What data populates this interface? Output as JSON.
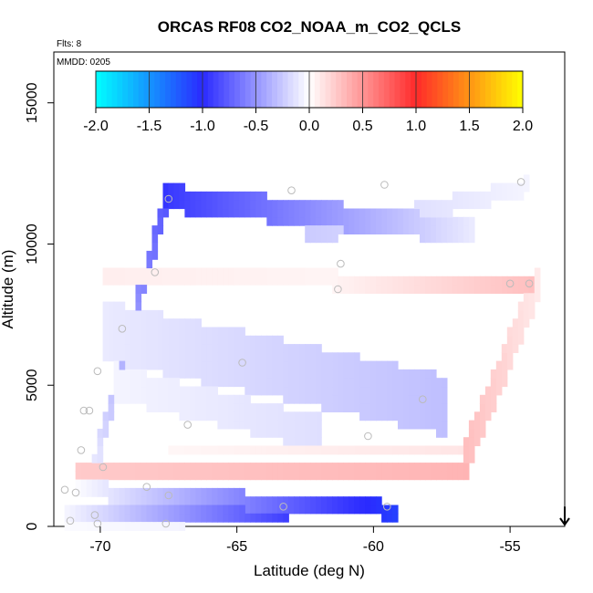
{
  "chart_data": {
    "type": "heatmap",
    "title": "ORCAS RF08 CO2_NOAA_m_CO2_QCLS",
    "annotations": {
      "flights": "Flts: 8",
      "date": "MMDD: 0205"
    },
    "xlabel": "Latitude (deg N)",
    "ylabel": "Altitude (m)",
    "xlim": [
      -71.7,
      -53.0
    ],
    "ylim": [
      0,
      16800
    ],
    "x_ticks": [
      -70,
      -65,
      -60,
      -55
    ],
    "x_tick_labels": [
      "-70",
      "-65",
      "-60",
      "-55"
    ],
    "y_ticks": [
      0,
      5000,
      10000,
      15000
    ],
    "y_tick_labels": [
      "0",
      "5000",
      "10000",
      "15000"
    ],
    "colorbar": {
      "min": -2.0,
      "max": 2.0,
      "ticks": [
        -2.0,
        -1.5,
        -1.0,
        -0.5,
        0.0,
        0.5,
        1.0,
        1.5,
        2.0
      ],
      "tick_labels": [
        "-2.0",
        "-1.5",
        "-1.0",
        "-0.5",
        "0.0",
        "0.5",
        "1.0",
        "1.5",
        "2.0"
      ],
      "stops": [
        "#00ffff",
        "#2a2aff",
        "#ffffff",
        "#ff2a2a",
        "#ffff00"
      ]
    },
    "arrow_marker": {
      "lat": -53.0,
      "alt_from": 700,
      "alt_to": 0,
      "direction": "down"
    },
    "cell_size": {
      "dlat": 0.2,
      "dalt": 300
    },
    "segments": [
      {
        "lat0": -67.7,
        "alt0": 11700,
        "lat1": -56.5,
        "alt1": 10500,
        "thickness": 700,
        "v0": -0.95,
        "v1": -0.1
      },
      {
        "lat0": -62.5,
        "alt0": 10300,
        "lat1": -54.4,
        "alt1": 12100,
        "thickness": 500,
        "v0": -0.25,
        "v1": -0.05
      },
      {
        "lat0": -69.8,
        "alt0": 8900,
        "lat1": -61.5,
        "alt1": 8900,
        "thickness": 400,
        "v0": 0.08,
        "v1": 0.05
      },
      {
        "lat0": -61.5,
        "alt0": 8500,
        "lat1": -54.2,
        "alt1": 8600,
        "thickness": 300,
        "v0": 0.05,
        "v1": 0.3
      },
      {
        "lat0": -69.8,
        "alt0": 7000,
        "lat1": -57.5,
        "alt1": 4400,
        "thickness": 2000,
        "v0": -0.1,
        "v1": -0.3
      },
      {
        "lat0": -69.5,
        "alt0": 5200,
        "lat1": -62.0,
        "alt1": 3400,
        "thickness": 1100,
        "v0": -0.05,
        "v1": -0.15
      },
      {
        "lat0": -70.8,
        "alt0": 2000,
        "lat1": -56.6,
        "alt1": 2100,
        "thickness": 350,
        "v0": 0.25,
        "v1": 0.35
      },
      {
        "lat0": -67.5,
        "alt0": 2700,
        "lat1": -56.8,
        "alt1": 2700,
        "thickness": 250,
        "v0": 0.04,
        "v1": 0.12
      },
      {
        "lat0": -56.6,
        "alt0": 2500,
        "lat1": -54.0,
        "alt1": 8500,
        "thickness": 900,
        "v0": 0.3,
        "v1": 0.1
      },
      {
        "lat0": -71.0,
        "alt0": 1300,
        "lat1": -59.2,
        "alt1": 600,
        "thickness": 350,
        "v0": 0.0,
        "v1": -1.1
      },
      {
        "lat0": -71.2,
        "alt0": 400,
        "lat1": -63.2,
        "alt1": 400,
        "thickness": 300,
        "v0": -0.05,
        "v1": -0.9
      },
      {
        "lat0": -71.3,
        "alt0": 100,
        "lat1": -67.0,
        "alt1": 100,
        "thickness": 200,
        "v0": -0.02,
        "v1": -0.05
      },
      {
        "lat0": -70.4,
        "alt0": 1500,
        "lat1": -67.6,
        "alt1": 11600,
        "thickness": 300,
        "v0": -0.05,
        "v1": -0.8
      }
    ],
    "circles": [
      [
        -67.5,
        11600
      ],
      [
        -63.0,
        11900
      ],
      [
        -59.6,
        12100
      ],
      [
        -54.6,
        12200
      ],
      [
        -61.2,
        9300
      ],
      [
        -68.0,
        9000
      ],
      [
        -61.3,
        8400
      ],
      [
        -55.0,
        8600
      ],
      [
        -54.3,
        8600
      ],
      [
        -69.2,
        7000
      ],
      [
        -70.1,
        5500
      ],
      [
        -64.8,
        5800
      ],
      [
        -58.2,
        4500
      ],
      [
        -70.4,
        4100
      ],
      [
        -70.6,
        4100
      ],
      [
        -66.8,
        3600
      ],
      [
        -60.2,
        3200
      ],
      [
        -70.7,
        2700
      ],
      [
        -69.9,
        2100
      ],
      [
        -71.3,
        1300
      ],
      [
        -70.9,
        1200
      ],
      [
        -68.3,
        1400
      ],
      [
        -67.5,
        1100
      ],
      [
        -63.3,
        700
      ],
      [
        -59.5,
        700
      ],
      [
        -70.2,
        400
      ],
      [
        -70.1,
        100
      ],
      [
        -71.1,
        200
      ],
      [
        -67.6,
        100
      ]
    ]
  }
}
